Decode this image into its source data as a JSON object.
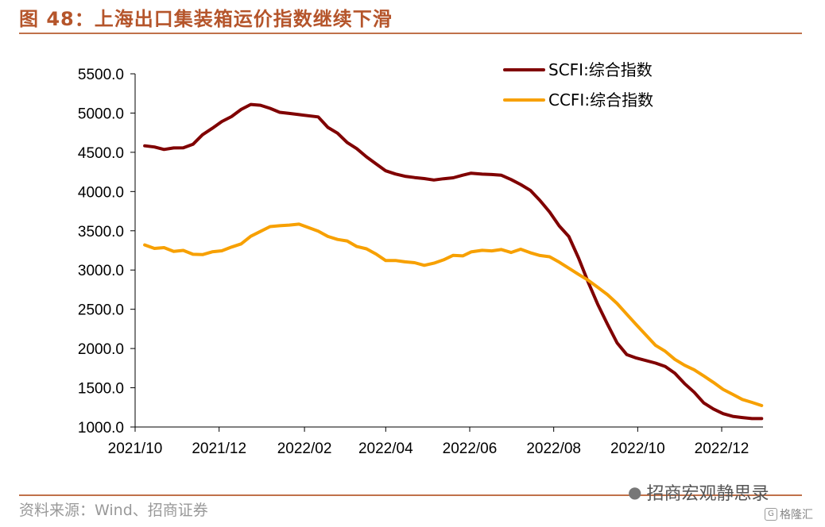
{
  "figure": {
    "title": "图 48：上海出口集装箱运价指数继续下滑",
    "source": "资料来源：Wind、招商证券",
    "watermark": "招商宏观静思录",
    "brand": "格隆汇",
    "accent_color": "#B5552B"
  },
  "chart_data": {
    "type": "line",
    "title": "",
    "xlabel": "",
    "ylabel": "",
    "ylim": [
      1000,
      5500
    ],
    "yticks": [
      "1000.0",
      "1500.0",
      "2000.0",
      "2500.0",
      "3000.0",
      "3500.0",
      "4000.0",
      "4500.0",
      "5000.0",
      "5500.0"
    ],
    "xticks": [
      "2021/10",
      "2021/12",
      "2022/02",
      "2022/04",
      "2022/06",
      "2022/08",
      "2022/10",
      "2022/12"
    ],
    "legend_position": "top-right",
    "grid": false,
    "x": [
      "2021-10-08",
      "2021-10-15",
      "2021-10-22",
      "2021-10-29",
      "2021-11-05",
      "2021-11-12",
      "2021-11-19",
      "2021-11-26",
      "2021-12-03",
      "2021-12-10",
      "2021-12-17",
      "2021-12-24",
      "2021-12-31",
      "2022-01-07",
      "2022-01-14",
      "2022-01-21",
      "2022-01-28",
      "2022-02-11",
      "2022-02-18",
      "2022-02-25",
      "2022-03-04",
      "2022-03-11",
      "2022-03-18",
      "2022-03-25",
      "2022-04-01",
      "2022-04-08",
      "2022-04-15",
      "2022-04-22",
      "2022-04-29",
      "2022-05-06",
      "2022-05-13",
      "2022-05-20",
      "2022-05-27",
      "2022-06-02",
      "2022-06-10",
      "2022-06-17",
      "2022-06-24",
      "2022-07-01",
      "2022-07-08",
      "2022-07-15",
      "2022-07-22",
      "2022-07-29",
      "2022-08-05",
      "2022-08-12",
      "2022-08-19",
      "2022-08-26",
      "2022-09-02",
      "2022-09-09",
      "2022-09-16",
      "2022-09-23",
      "2022-09-30",
      "2022-10-14",
      "2022-10-21",
      "2022-10-28",
      "2022-11-04",
      "2022-11-11",
      "2022-11-18",
      "2022-11-25",
      "2022-12-02",
      "2022-12-09",
      "2022-12-16",
      "2022-12-23",
      "2022-12-30"
    ],
    "series": [
      {
        "name": "SCFI:综合指数",
        "color": "#800000",
        "values": [
          4583,
          4568,
          4536,
          4556,
          4557,
          4602,
          4724,
          4805,
          4892,
          4955,
          5046,
          5110,
          5100,
          5060,
          5010,
          4995,
          4980,
          4951,
          4817,
          4744,
          4624,
          4546,
          4442,
          4352,
          4264,
          4224,
          4194,
          4178,
          4165,
          4147,
          4163,
          4175,
          4209,
          4234,
          4222,
          4217,
          4208,
          4153,
          4089,
          4016,
          3887,
          3739,
          3562,
          3427,
          3154,
          2847,
          2562,
          2312,
          2072,
          1923,
          1879,
          1814,
          1771,
          1685,
          1553,
          1443,
          1306,
          1230,
          1170,
          1136,
          1120,
          1107,
          1107
        ]
      },
      {
        "name": "CCFI:综合指数",
        "color": "#F7A000",
        "values": [
          3320,
          3275,
          3285,
          3238,
          3250,
          3200,
          3196,
          3232,
          3245,
          3292,
          3333,
          3430,
          3492,
          3553,
          3565,
          3573,
          3585,
          3495,
          3428,
          3390,
          3370,
          3300,
          3270,
          3203,
          3121,
          3122,
          3104,
          3093,
          3060,
          3087,
          3130,
          3187,
          3180,
          3231,
          3251,
          3244,
          3261,
          3224,
          3265,
          3221,
          3185,
          3169,
          3100,
          3023,
          2945,
          2870,
          2780,
          2688,
          2573,
          2438,
          2303,
          2040,
          1965,
          1862,
          1787,
          1729,
          1650,
          1568,
          1479,
          1416,
          1351,
          1313,
          1273
        ]
      }
    ]
  }
}
